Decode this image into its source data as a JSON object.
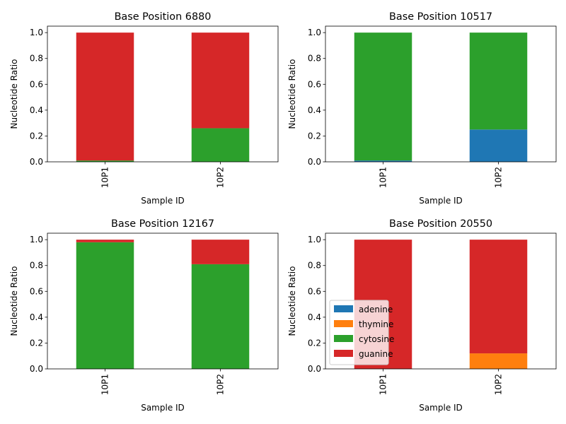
{
  "legend": {
    "placement": "lower-left of bottom-right panel",
    "entries": [
      {
        "label": "adenine",
        "color": "#1f77b4"
      },
      {
        "label": "thymine",
        "color": "#ff7f0e"
      },
      {
        "label": "cytosine",
        "color": "#2ca02c"
      },
      {
        "label": "guanine",
        "color": "#d62728"
      }
    ]
  },
  "chart_data": [
    {
      "type": "bar",
      "stacked": true,
      "title": "Base Position 6880",
      "xlabel": "Sample ID",
      "ylabel": "Nucleotide Ratio",
      "categories": [
        "10P1",
        "10P2"
      ],
      "ylim": [
        0,
        1.05
      ],
      "yticks": [
        "0.0",
        "0.2",
        "0.4",
        "0.6",
        "0.8",
        "1.0"
      ],
      "series": [
        {
          "name": "adenine",
          "values": [
            0,
            0
          ]
        },
        {
          "name": "thymine",
          "values": [
            0,
            0
          ]
        },
        {
          "name": "cytosine",
          "values": [
            0.01,
            0.26
          ]
        },
        {
          "name": "guanine",
          "values": [
            0.99,
            0.74
          ]
        }
      ]
    },
    {
      "type": "bar",
      "stacked": true,
      "title": "Base Position 10517",
      "xlabel": "Sample ID",
      "ylabel": "Nucleotide Ratio",
      "categories": [
        "10P1",
        "10P2"
      ],
      "ylim": [
        0,
        1.05
      ],
      "yticks": [
        "0.0",
        "0.2",
        "0.4",
        "0.6",
        "0.8",
        "1.0"
      ],
      "series": [
        {
          "name": "adenine",
          "values": [
            0.01,
            0.25
          ]
        },
        {
          "name": "thymine",
          "values": [
            0,
            0
          ]
        },
        {
          "name": "cytosine",
          "values": [
            0.99,
            0.75
          ]
        },
        {
          "name": "guanine",
          "values": [
            0,
            0
          ]
        }
      ]
    },
    {
      "type": "bar",
      "stacked": true,
      "title": "Base Position 12167",
      "xlabel": "Sample ID",
      "ylabel": "Nucleotide Ratio",
      "categories": [
        "10P1",
        "10P2"
      ],
      "ylim": [
        0,
        1.05
      ],
      "yticks": [
        "0.0",
        "0.2",
        "0.4",
        "0.6",
        "0.8",
        "1.0"
      ],
      "series": [
        {
          "name": "adenine",
          "values": [
            0,
            0
          ]
        },
        {
          "name": "thymine",
          "values": [
            0,
            0
          ]
        },
        {
          "name": "cytosine",
          "values": [
            0.98,
            0.81
          ]
        },
        {
          "name": "guanine",
          "values": [
            0.02,
            0.19
          ]
        }
      ]
    },
    {
      "type": "bar",
      "stacked": true,
      "title": "Base Position 20550",
      "xlabel": "Sample ID",
      "ylabel": "Nucleotide Ratio",
      "categories": [
        "10P1",
        "10P2"
      ],
      "ylim": [
        0,
        1.05
      ],
      "yticks": [
        "0.0",
        "0.2",
        "0.4",
        "0.6",
        "0.8",
        "1.0"
      ],
      "series": [
        {
          "name": "adenine",
          "values": [
            0,
            0
          ]
        },
        {
          "name": "thymine",
          "values": [
            0,
            0.12
          ]
        },
        {
          "name": "cytosine",
          "values": [
            0,
            0
          ]
        },
        {
          "name": "guanine",
          "values": [
            1.0,
            0.88
          ]
        }
      ]
    }
  ]
}
